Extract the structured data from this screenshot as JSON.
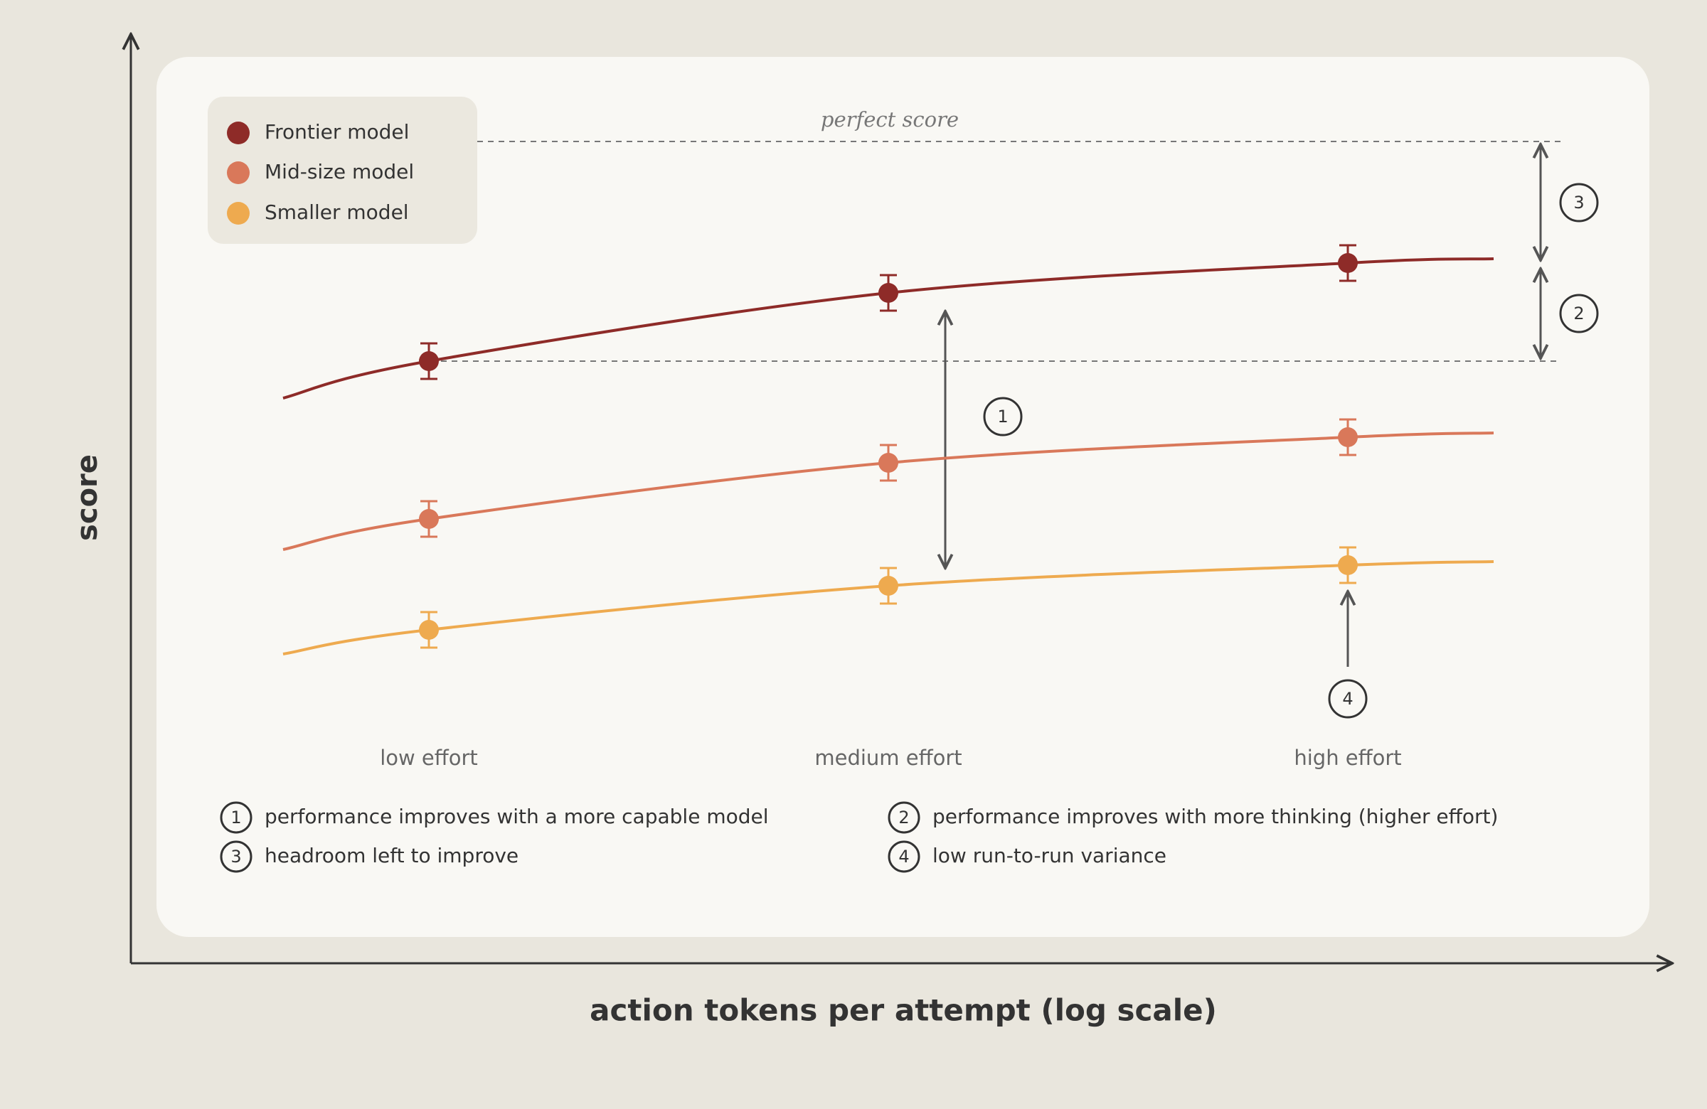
{
  "axes": {
    "y_label": "score",
    "x_label": "action tokens per attempt (log scale)"
  },
  "legend": [
    {
      "name": "Frontier model",
      "color": "#8e2b28"
    },
    {
      "name": "Mid-size model",
      "color": "#d9785a"
    },
    {
      "name": "Smaller model",
      "color": "#eeaa4f"
    }
  ],
  "reference_line": "perfect score",
  "x_labels": [
    "low effort",
    "medium effort",
    "high effort"
  ],
  "callouts": [
    "1",
    "2",
    "3",
    "4"
  ],
  "notes": [
    {
      "marker": "1",
      "text": "performance improves with a more capable model"
    },
    {
      "marker": "2",
      "text": "performance improves with more thinking (higher effort)"
    },
    {
      "marker": "3",
      "text": "headroom left to improve"
    },
    {
      "marker": "4",
      "text": "low run-to-run variance"
    }
  ]
}
